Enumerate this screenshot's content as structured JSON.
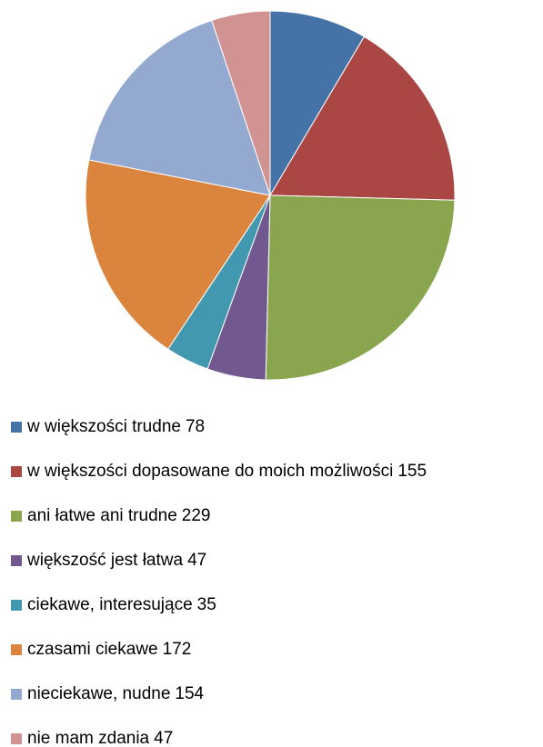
{
  "chart_data": {
    "type": "pie",
    "categories": [
      "w większości trudne",
      "w większości dopasowane do moich możliwości",
      "ani łatwe ani trudne",
      "większość jest łatwa",
      "ciekawe, interesujące",
      "czasami ciekawe",
      "nieciekawe, nudne",
      "nie mam zdania"
    ],
    "values": [
      78,
      155,
      229,
      47,
      35,
      172,
      154,
      47
    ],
    "colors": [
      "#4572a7",
      "#aa4643",
      "#89a54e",
      "#71588f",
      "#4198af",
      "#db843d",
      "#93a9cf",
      "#d19392"
    ],
    "legend": "bottom"
  }
}
